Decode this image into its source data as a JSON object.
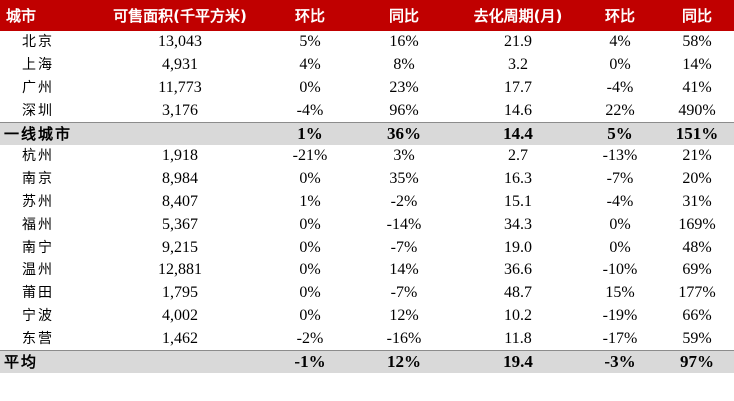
{
  "headers": [
    "城市",
    "可售面积(千平方米)",
    "环比",
    "同比",
    "去化周期(月)",
    "环比",
    "同比"
  ],
  "rows": [
    {
      "city": "北京",
      "area": "13,043",
      "area_mom": "5%",
      "area_yoy": "16%",
      "cycle": "21.9",
      "cycle_mom": "4%",
      "cycle_yoy": "58%"
    },
    {
      "city": "上海",
      "area": "4,931",
      "area_mom": "4%",
      "area_yoy": "8%",
      "cycle": "3.2",
      "cycle_mom": "0%",
      "cycle_yoy": "14%"
    },
    {
      "city": "广州",
      "area": "11,773",
      "area_mom": "0%",
      "area_yoy": "23%",
      "cycle": "17.7",
      "cycle_mom": "-4%",
      "cycle_yoy": "41%"
    },
    {
      "city": "深圳",
      "area": "3,176",
      "area_mom": "-4%",
      "area_yoy": "96%",
      "cycle": "14.6",
      "cycle_mom": "22%",
      "cycle_yoy": "490%"
    },
    {
      "city": "一线城市",
      "area": "",
      "area_mom": "1%",
      "area_yoy": "36%",
      "cycle": "14.4",
      "cycle_mom": "5%",
      "cycle_yoy": "151%",
      "summary": true
    },
    {
      "city": "杭州",
      "area": "1,918",
      "area_mom": "-21%",
      "area_yoy": "3%",
      "cycle": "2.7",
      "cycle_mom": "-13%",
      "cycle_yoy": "21%"
    },
    {
      "city": "南京",
      "area": "8,984",
      "area_mom": "0%",
      "area_yoy": "35%",
      "cycle": "16.3",
      "cycle_mom": "-7%",
      "cycle_yoy": "20%"
    },
    {
      "city": "苏州",
      "area": "8,407",
      "area_mom": "1%",
      "area_yoy": "-2%",
      "cycle": "15.1",
      "cycle_mom": "-4%",
      "cycle_yoy": "31%"
    },
    {
      "city": "福州",
      "area": "5,367",
      "area_mom": "0%",
      "area_yoy": "-14%",
      "cycle": "34.3",
      "cycle_mom": "0%",
      "cycle_yoy": "169%"
    },
    {
      "city": "南宁",
      "area": "9,215",
      "area_mom": "0%",
      "area_yoy": "-7%",
      "cycle": "19.0",
      "cycle_mom": "0%",
      "cycle_yoy": "48%"
    },
    {
      "city": "温州",
      "area": "12,881",
      "area_mom": "0%",
      "area_yoy": "14%",
      "cycle": "36.6",
      "cycle_mom": "-10%",
      "cycle_yoy": "69%"
    },
    {
      "city": "莆田",
      "area": "1,795",
      "area_mom": "0%",
      "area_yoy": "-7%",
      "cycle": "48.7",
      "cycle_mom": "15%",
      "cycle_yoy": "177%"
    },
    {
      "city": "宁波",
      "area": "4,002",
      "area_mom": "0%",
      "area_yoy": "12%",
      "cycle": "10.2",
      "cycle_mom": "-19%",
      "cycle_yoy": "66%"
    },
    {
      "city": "东营",
      "area": "1,462",
      "area_mom": "-2%",
      "area_yoy": "-16%",
      "cycle": "11.8",
      "cycle_mom": "-17%",
      "cycle_yoy": "59%"
    },
    {
      "city": "平均",
      "area": "",
      "area_mom": "-1%",
      "area_yoy": "12%",
      "cycle": "19.4",
      "cycle_mom": "-3%",
      "cycle_yoy": "97%",
      "summary": true
    }
  ],
  "colors": {
    "header_bg": "#c00000",
    "header_text": "#ffffff",
    "summary_bg": "#d9d9d9"
  }
}
